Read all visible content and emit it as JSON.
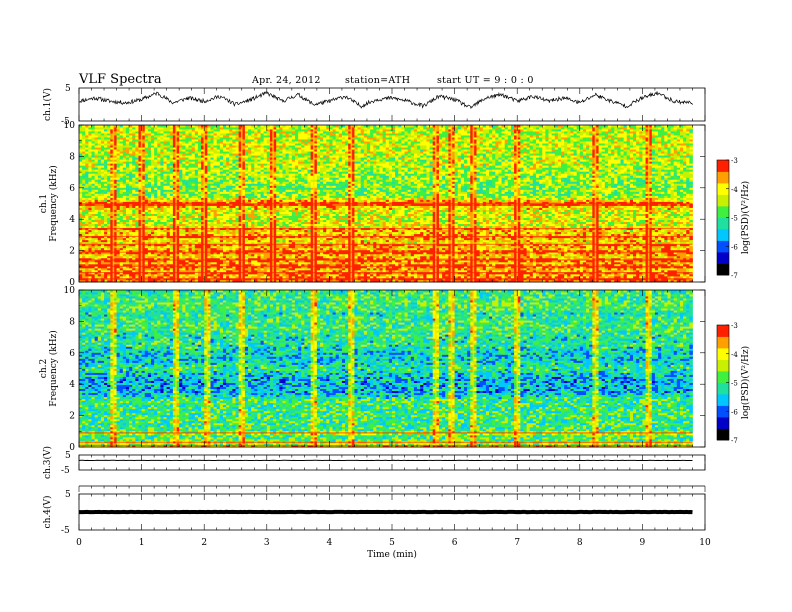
{
  "header": {
    "title": "VLF  Spectra",
    "date": "Apr. 24, 2012",
    "station": "station=ATH",
    "start": "start  UT  =   9 : 0 : 0"
  },
  "colors": {
    "colormap": [
      "#000000",
      "#0000c8",
      "#0050ff",
      "#00c8ff",
      "#20e0a0",
      "#40f040",
      "#c8f000",
      "#ffff00",
      "#ffa000",
      "#ff2000",
      "#ffffff"
    ],
    "trace": "#000000",
    "frame": "#000000"
  },
  "chart_data": [
    {
      "type": "line",
      "panel": "ch1-waveform",
      "ylabel": "ch.1(V)",
      "ylim": [
        -5,
        5
      ],
      "yticks": [
        "5",
        "-5"
      ],
      "x": [
        0,
        0.25,
        0.5,
        0.75,
        1.0,
        1.25,
        1.5,
        1.75,
        2.0,
        2.25,
        2.5,
        2.75,
        3.0,
        3.25,
        3.5,
        3.75,
        4.0,
        4.25,
        4.5,
        4.75,
        5.0,
        5.25,
        5.5,
        5.75,
        6.0,
        6.25,
        6.5,
        6.75,
        7.0,
        7.25,
        7.5,
        7.75,
        8.0,
        8.25,
        8.5,
        8.75,
        9.0,
        9.25,
        9.5,
        9.8
      ],
      "values": [
        1.0,
        2.0,
        1.0,
        0.5,
        1.5,
        3.5,
        0.5,
        2.0,
        1.0,
        2.5,
        0.0,
        1.5,
        3.5,
        1.0,
        3.0,
        0.0,
        1.0,
        2.5,
        -0.5,
        1.5,
        2.0,
        1.0,
        -0.5,
        2.5,
        1.5,
        -1.0,
        2.0,
        3.0,
        1.0,
        2.5,
        1.0,
        2.0,
        0.5,
        3.0,
        1.0,
        -0.5,
        2.0,
        3.5,
        1.0,
        0.5
      ]
    },
    {
      "type": "heatmap",
      "panel": "ch1-spectrogram",
      "ylabel": "ch.1  Frequency  (kHz)",
      "xlim": [
        0,
        10
      ],
      "ylim": [
        0,
        10
      ],
      "yticks": [
        "0",
        "2",
        "4",
        "6",
        "8",
        "10"
      ],
      "data_end_min": 9.8,
      "colorbar_label": "log(PSD)(V²/Hz)",
      "clim": [
        -7,
        -3
      ],
      "colorbar_ticks": [
        "-3",
        "-4",
        "-5",
        "-6",
        "-7"
      ],
      "freq_profile_kHz": [
        0,
        0.5,
        1.0,
        1.5,
        2.0,
        2.5,
        3.0,
        3.5,
        4.0,
        4.5,
        5.0,
        5.5,
        6.0,
        6.5,
        7.0,
        7.5,
        8.0,
        8.5,
        9.0,
        9.5,
        10.0
      ],
      "logpsd_profile": [
        -3.4,
        -3.7,
        -3.8,
        -3.9,
        -3.8,
        -4.0,
        -3.8,
        -4.1,
        -4.3,
        -4.2,
        -3.6,
        -4.6,
        -4.7,
        -4.6,
        -4.5,
        -4.4,
        -4.4,
        -4.3,
        -4.3,
        -4.3,
        -4.4
      ],
      "strong_bands_kHz": [
        0.2,
        0.6,
        1.0,
        1.4,
        1.9,
        2.4,
        2.9,
        3.4,
        4.9,
        5.0
      ],
      "vertical_bursts_min": [
        0.55,
        1.0,
        1.55,
        2.0,
        2.6,
        3.1,
        3.75,
        4.35,
        5.7,
        5.95,
        6.3,
        7.0,
        8.25,
        9.1
      ]
    },
    {
      "type": "heatmap",
      "panel": "ch2-spectrogram",
      "ylabel": "ch.2  Frequency  (kHz)",
      "xlim": [
        0,
        10
      ],
      "ylim": [
        0,
        10
      ],
      "yticks": [
        "0",
        "2",
        "4",
        "6",
        "8",
        "10"
      ],
      "data_end_min": 9.8,
      "colorbar_label": "log(PSD)(V²/Hz)",
      "clim": [
        -7,
        -3
      ],
      "colorbar_ticks": [
        "-3",
        "-4",
        "-5",
        "-6",
        "-7"
      ],
      "freq_profile_kHz": [
        0,
        0.5,
        1.0,
        1.5,
        2.0,
        2.5,
        3.0,
        3.5,
        4.0,
        4.5,
        5.0,
        5.5,
        6.0,
        6.5,
        7.0,
        7.5,
        8.0,
        8.5,
        9.0,
        9.5,
        10.0
      ],
      "logpsd_profile": [
        -4.3,
        -4.9,
        -5.0,
        -5.0,
        -5.0,
        -5.1,
        -5.0,
        -5.6,
        -5.6,
        -5.6,
        -5.1,
        -5.4,
        -5.5,
        -5.1,
        -5.2,
        -5.0,
        -5.0,
        -5.2,
        -4.9,
        -5.0,
        -5.1
      ],
      "strong_bands_kHz": [
        0.1,
        0.3,
        0.9
      ],
      "vertical_bursts_min": [
        0.55,
        1.55,
        2.05,
        2.6,
        3.75,
        4.35,
        5.7,
        5.95,
        6.3,
        7.0,
        8.25,
        9.1
      ]
    },
    {
      "type": "line",
      "panel": "ch3-waveform",
      "ylabel": "ch.3(V)",
      "ylim": [
        -5,
        5
      ],
      "yticks": [
        "5",
        "-5"
      ],
      "x": [
        0,
        9.8
      ],
      "values": [
        1.4,
        1.4
      ]
    },
    {
      "type": "line",
      "panel": "ch4-waveform",
      "ylabel": "ch.4(V)",
      "ylim": [
        -5,
        5
      ],
      "yticks": [
        "5",
        "-5"
      ],
      "x": [
        0,
        9.8
      ],
      "values": [
        0.0,
        0.0
      ]
    },
    {
      "type": "axis",
      "panel": "time-axis",
      "xlabel": "Time  (min)",
      "xlim": [
        0,
        10
      ],
      "xticks": [
        "0",
        "1",
        "2",
        "3",
        "4",
        "5",
        "6",
        "7",
        "8",
        "9",
        "10"
      ]
    }
  ]
}
